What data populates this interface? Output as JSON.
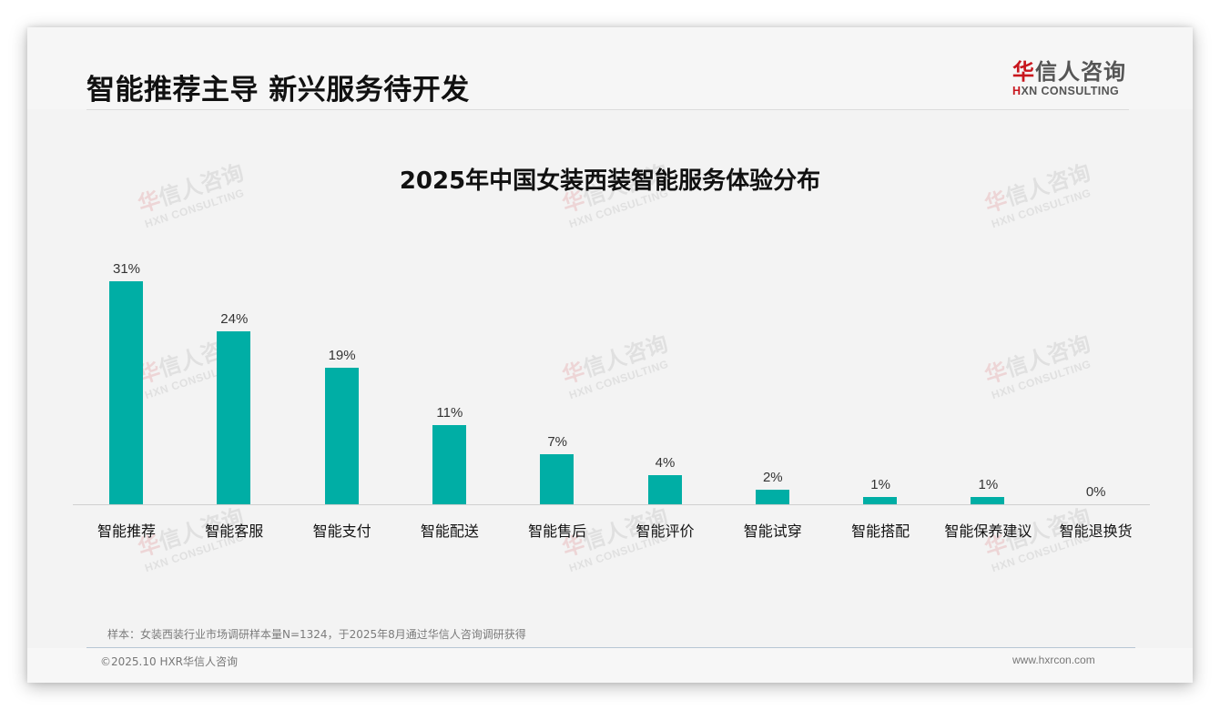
{
  "header": {
    "title": "智能推荐主导 新兴服务待开发",
    "logo": {
      "cn_accent": "华",
      "cn_rest": "信人咨询",
      "en_accent": "H",
      "en_rest": "XN CONSULTING"
    }
  },
  "watermark": {
    "cn_accent": "华",
    "cn_rest": "信人咨询",
    "en": "HXN CONSULTING"
  },
  "colors": {
    "bar": "#00aea5",
    "brand_red": "#c8161d",
    "background": "#f3f3f3"
  },
  "chart_data": {
    "type": "bar",
    "title": "2025年中国女装西装智能服务体验分布",
    "categories": [
      "智能推荐",
      "智能客服",
      "智能支付",
      "智能配送",
      "智能售后",
      "智能评价",
      "智能试穿",
      "智能搭配",
      "智能保养建议",
      "智能退换货"
    ],
    "values": [
      31,
      24,
      19,
      11,
      7,
      4,
      2,
      1,
      1,
      0
    ],
    "value_labels": [
      "31%",
      "24%",
      "19%",
      "11%",
      "7%",
      "4%",
      "2%",
      "1%",
      "1%",
      "0%"
    ],
    "xlabel": "",
    "ylabel": "",
    "unit": "%",
    "ylim": [
      0,
      31
    ],
    "grid": false,
    "legend": null,
    "y_axis_visible": false
  },
  "footer": {
    "source": "样本：女装西装行业市场调研样本量N=1324，于2025年8月通过华信人咨询调研获得",
    "copyright": "©2025.10 HXR华信人咨询",
    "website": "www.hxrcon.com"
  }
}
